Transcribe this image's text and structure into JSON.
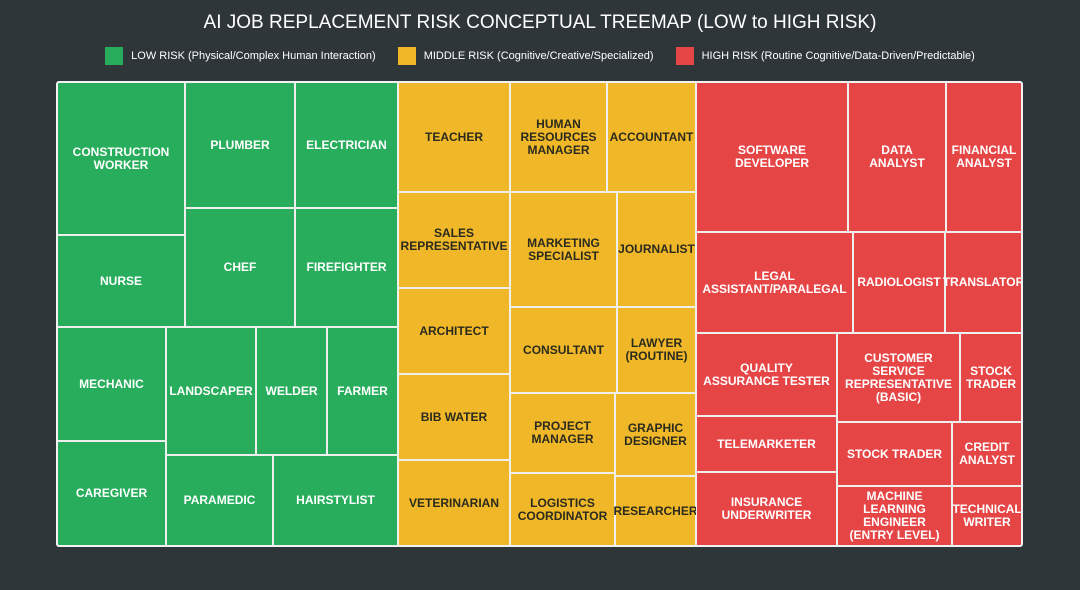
{
  "title": "AI JOB REPLACEMENT RISK CONCEPTUAL TREEMAP (LOW to HIGH RISK)",
  "legend": [
    {
      "label": "LOW RISK (Physical/Complex Human Interaction)",
      "color": "#27ad5c"
    },
    {
      "label": "MIDDLE RISK (Cognitive/Creative/Specialized)",
      "color": "#f0b828"
    },
    {
      "label": "HIGH RISK (Routine Cognitive/Data-Driven/Predictable)",
      "color": "#e64546"
    }
  ],
  "groups": [
    {
      "cells": [
        "CONSTRUCTION WORKER",
        "PLUMBER",
        "ELECTRICIAN",
        "NURSE",
        "CHEF",
        "FIREFIGHTER",
        "MECHANIC",
        "LANDSCAPER",
        "WELDER",
        "FARMER",
        "CAREGIVER",
        "PARAMEDIC",
        "HAIRSTYLIST"
      ]
    },
    {
      "cells": [
        "TEACHER",
        "HUMAN RESOURCES MANAGER",
        "ACCOUNTANT",
        "SALES REPRESENTATIVE",
        "MARKETING SPECIALIST",
        "JOURNALIST",
        "ARCHITECT",
        "CONSULTANT",
        "LAWYER (ROUTINE)",
        "BIB WATER",
        "PROJECT MANAGER",
        "GRAPHIC DESIGNER",
        "VETERINARIAN",
        "LOGISTICS COORDINATOR",
        "RESEARCHER"
      ]
    },
    {
      "cells": [
        "SOFTWARE DEVELOPER",
        "DATA ANALYST",
        "FINANCIAL ANALYST",
        "LEGAL ASSISTANT/PARALEGAL",
        "RADIOLOGIST",
        "TRANSLATOR",
        "QUALITY ASSURANCE TESTER",
        "CUSTOMER SERVICE REPRESENTATIVE (BASIC)",
        "STOCK TRADER",
        "TELEMARKETER",
        "STOCK TRADER",
        "CREDIT ANALYST",
        "INSURANCE UNDERWRITER",
        "MACHINE LEARNING ENGINEER (ENTRY LEVEL)",
        "TECHNICAL WRITER"
      ]
    }
  ]
}
